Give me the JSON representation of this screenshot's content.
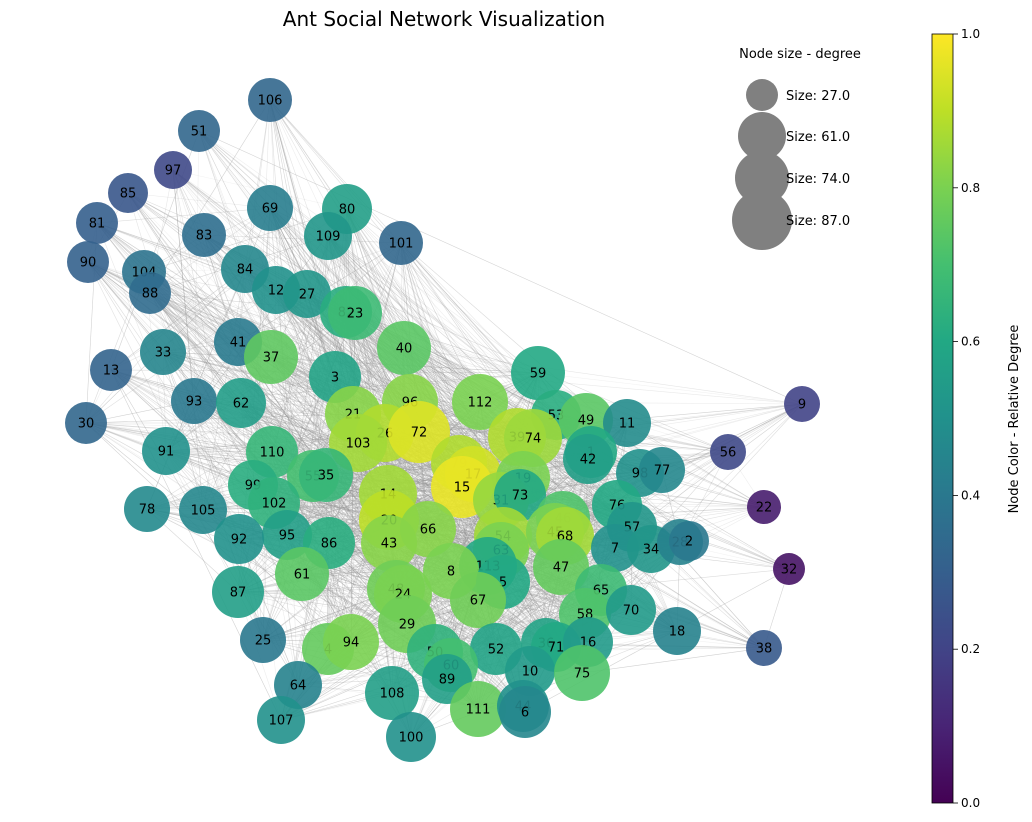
{
  "title": "Ant Social Network Visualization",
  "legend": {
    "title": "Node size - degree",
    "entries": [
      {
        "label": "Size: 27.0",
        "degree": 27.0
      },
      {
        "label": "Size: 61.0",
        "degree": 61.0
      },
      {
        "label": "Size: 74.0",
        "degree": 74.0
      },
      {
        "label": "Size: 87.0",
        "degree": 87.0
      }
    ],
    "marker_color": "#808080"
  },
  "colorbar": {
    "label": "Node Color - Relative Degree",
    "colormap": "viridis",
    "ticks": [
      "0.0",
      "0.2",
      "0.4",
      "0.6",
      "0.8",
      "1.0"
    ]
  },
  "edge_color": "#999999",
  "nodes": [
    {
      "id": "106",
      "value": 0.33
    },
    {
      "id": "51",
      "value": 0.33
    },
    {
      "id": "97",
      "value": 0.22
    },
    {
      "id": "85",
      "value": 0.27
    },
    {
      "id": "81",
      "value": 0.3
    },
    {
      "id": "90",
      "value": 0.31
    },
    {
      "id": "104",
      "value": 0.38
    },
    {
      "id": "88",
      "value": 0.35
    },
    {
      "id": "83",
      "value": 0.36
    },
    {
      "id": "69",
      "value": 0.42
    },
    {
      "id": "80",
      "value": 0.56
    },
    {
      "id": "109",
      "value": 0.52
    },
    {
      "id": "101",
      "value": 0.33
    },
    {
      "id": "84",
      "value": 0.46
    },
    {
      "id": "12",
      "value": 0.5
    },
    {
      "id": "27",
      "value": 0.52
    },
    {
      "id": "82",
      "value": 0.62
    },
    {
      "id": "23",
      "value": 0.68
    },
    {
      "id": "41",
      "value": 0.41
    },
    {
      "id": "33",
      "value": 0.45
    },
    {
      "id": "13",
      "value": 0.32
    },
    {
      "id": "37",
      "value": 0.75
    },
    {
      "id": "40",
      "value": 0.74
    },
    {
      "id": "3",
      "value": 0.58
    },
    {
      "id": "59",
      "value": 0.6
    },
    {
      "id": "93",
      "value": 0.4
    },
    {
      "id": "62",
      "value": 0.55
    },
    {
      "id": "30",
      "value": 0.33
    },
    {
      "id": "96",
      "value": 0.82
    },
    {
      "id": "112",
      "value": 0.8
    },
    {
      "id": "53",
      "value": 0.62
    },
    {
      "id": "49",
      "value": 0.74
    },
    {
      "id": "11",
      "value": 0.48
    },
    {
      "id": "9",
      "value": 0.2
    },
    {
      "id": "21",
      "value": 0.82
    },
    {
      "id": "26",
      "value": 0.88
    },
    {
      "id": "72",
      "value": 0.95
    },
    {
      "id": "39",
      "value": 0.88
    },
    {
      "id": "74",
      "value": 0.85
    },
    {
      "id": "91",
      "value": 0.5
    },
    {
      "id": "110",
      "value": 0.66
    },
    {
      "id": "103",
      "value": 0.86
    },
    {
      "id": "1",
      "value": 0.6
    },
    {
      "id": "42",
      "value": 0.56
    },
    {
      "id": "56",
      "value": 0.22
    },
    {
      "id": "79",
      "value": 0.88
    },
    {
      "id": "17",
      "value": 0.93
    },
    {
      "id": "15",
      "value": 0.97
    },
    {
      "id": "98",
      "value": 0.5
    },
    {
      "id": "77",
      "value": 0.46
    },
    {
      "id": "55",
      "value": 0.7
    },
    {
      "id": "35",
      "value": 0.66
    },
    {
      "id": "19",
      "value": 0.8
    },
    {
      "id": "99",
      "value": 0.62
    },
    {
      "id": "14",
      "value": 0.86
    },
    {
      "id": "31",
      "value": 0.84
    },
    {
      "id": "73",
      "value": 0.6
    },
    {
      "id": "78",
      "value": 0.47
    },
    {
      "id": "105",
      "value": 0.46
    },
    {
      "id": "102",
      "value": 0.64
    },
    {
      "id": "76",
      "value": 0.6
    },
    {
      "id": "22",
      "value": 0.08
    },
    {
      "id": "20",
      "value": 0.9
    },
    {
      "id": "66",
      "value": 0.82
    },
    {
      "id": "46",
      "value": 0.72
    },
    {
      "id": "95",
      "value": 0.56
    },
    {
      "id": "54",
      "value": 0.86
    },
    {
      "id": "45",
      "value": 0.8
    },
    {
      "id": "68",
      "value": 0.86
    },
    {
      "id": "57",
      "value": 0.52
    },
    {
      "id": "92",
      "value": 0.5
    },
    {
      "id": "86",
      "value": 0.62
    },
    {
      "id": "43",
      "value": 0.82
    },
    {
      "id": "63",
      "value": 0.8
    },
    {
      "id": "7",
      "value": 0.5
    },
    {
      "id": "34",
      "value": 0.52
    },
    {
      "id": "28",
      "value": 0.44
    },
    {
      "id": "2",
      "value": 0.4
    },
    {
      "id": "113",
      "value": 0.6
    },
    {
      "id": "47",
      "value": 0.76
    },
    {
      "id": "32",
      "value": 0.05
    },
    {
      "id": "61",
      "value": 0.74
    },
    {
      "id": "8",
      "value": 0.8
    },
    {
      "id": "5",
      "value": 0.6
    },
    {
      "id": "87",
      "value": 0.56
    },
    {
      "id": "48",
      "value": 0.78
    },
    {
      "id": "24",
      "value": 0.8
    },
    {
      "id": "65",
      "value": 0.68
    },
    {
      "id": "67",
      "value": 0.78
    },
    {
      "id": "58",
      "value": 0.72
    },
    {
      "id": "70",
      "value": 0.54
    },
    {
      "id": "18",
      "value": 0.44
    },
    {
      "id": "29",
      "value": 0.78
    },
    {
      "id": "25",
      "value": 0.4
    },
    {
      "id": "4",
      "value": 0.76
    },
    {
      "id": "94",
      "value": 0.8
    },
    {
      "id": "36",
      "value": 0.58
    },
    {
      "id": "71",
      "value": 0.6
    },
    {
      "id": "16",
      "value": 0.54
    },
    {
      "id": "38",
      "value": 0.28
    },
    {
      "id": "50",
      "value": 0.64
    },
    {
      "id": "52",
      "value": 0.58
    },
    {
      "id": "60",
      "value": 0.7
    },
    {
      "id": "64",
      "value": 0.44
    },
    {
      "id": "89",
      "value": 0.56
    },
    {
      "id": "10",
      "value": 0.54
    },
    {
      "id": "75",
      "value": 0.72
    },
    {
      "id": "108",
      "value": 0.56
    },
    {
      "id": "111",
      "value": 0.76
    },
    {
      "id": "44",
      "value": 0.5
    },
    {
      "id": "6",
      "value": 0.46
    },
    {
      "id": "107",
      "value": 0.5
    },
    {
      "id": "100",
      "value": 0.5
    }
  ]
}
